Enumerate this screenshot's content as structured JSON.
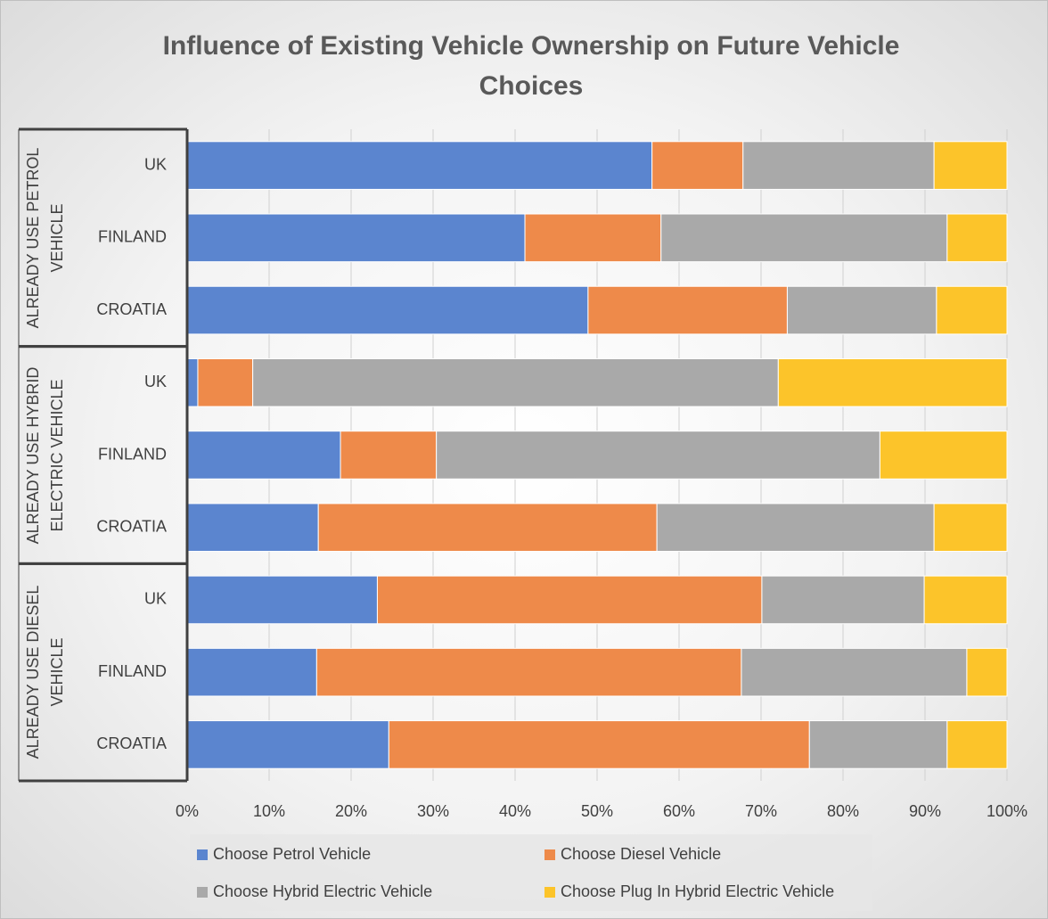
{
  "chart_data": {
    "type": "stacked-barh",
    "title": "Influence of Existing Vehicle Ownership on Future Vehicle Choices",
    "groups": [
      {
        "label": "ALREADY USE PETROL VEHICLE",
        "categories": [
          "UK",
          "FINLAND",
          "CROATIA"
        ]
      },
      {
        "label": "ALREADY USE HYBRID ELECTRIC VEHICLE",
        "categories": [
          "UK",
          "FINLAND",
          "CROATIA"
        ]
      },
      {
        "label": "ALREADY USE DIESEL VEHICLE",
        "categories": [
          "UK",
          "FINLAND",
          "CROATIA"
        ]
      }
    ],
    "series": [
      {
        "name": "Choose Petrol Vehicle",
        "color": "#5b85cf",
        "values": [
          56.7,
          41.2,
          48.9,
          1.3,
          18.7,
          16.0,
          23.2,
          15.8,
          24.6
        ]
      },
      {
        "name": "Choose Diesel Vehicle",
        "color": "#ee8a4a",
        "values": [
          11.1,
          16.6,
          24.3,
          6.7,
          11.7,
          41.3,
          46.9,
          51.8,
          51.3
        ]
      },
      {
        "name": "Choose Hybrid Electric Vehicle",
        "color": "#a9a9a9",
        "values": [
          23.3,
          34.9,
          18.2,
          64.1,
          54.1,
          33.8,
          19.8,
          27.5,
          16.8
        ]
      },
      {
        "name": "Choose Plug In Hybrid Electric Vehicle",
        "color": "#fcc42a",
        "values": [
          8.9,
          7.3,
          8.6,
          27.9,
          15.5,
          8.9,
          10.1,
          4.9,
          7.3
        ]
      }
    ],
    "xlim": [
      0,
      100
    ],
    "xticks": [
      {
        "value": 0,
        "label": "0%"
      },
      {
        "value": 10,
        "label": "10%"
      },
      {
        "value": 20,
        "label": "20%"
      },
      {
        "value": 30,
        "label": "30%"
      },
      {
        "value": 40,
        "label": "40%"
      },
      {
        "value": 50,
        "label": "50%"
      },
      {
        "value": 60,
        "label": "60%"
      },
      {
        "value": 70,
        "label": "70%"
      },
      {
        "value": 80,
        "label": "80%"
      },
      {
        "value": 90,
        "label": "90%"
      },
      {
        "value": 100,
        "label": "100%"
      }
    ],
    "grid": true,
    "legend": "bottom"
  }
}
